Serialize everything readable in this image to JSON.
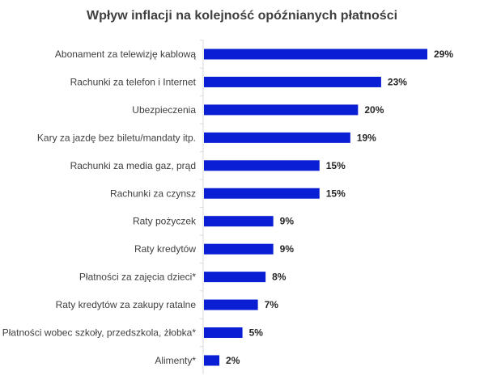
{
  "chart_data": {
    "type": "bar",
    "orientation": "horizontal",
    "title": "Wpływ inflacji na kolejność opóźnianych płatności",
    "categories": [
      "Abonament za telewizję kablową",
      "Rachunki za telefon i Internet",
      "Ubezpieczenia",
      "Kary za jazdę bez biletu/mandaty itp.",
      "Rachunki za media gaz, prąd",
      "Rachunki za czynsz",
      "Raty pożyczek",
      "Raty kredytów",
      "Płatności za zajęcia dzieci*",
      "Raty kredytów za zakupy ratalne",
      "Płatności wobec szkoły, przedszkola, żłobka*",
      "Alimenty*"
    ],
    "values": [
      29,
      23,
      20,
      19,
      15,
      15,
      9,
      9,
      8,
      7,
      5,
      2
    ],
    "value_labels": [
      "29%",
      "23%",
      "20%",
      "19%",
      "15%",
      "15%",
      "9%",
      "9%",
      "8%",
      "7%",
      "5%",
      "2%"
    ],
    "unit": "%",
    "xlim": [
      0,
      30
    ],
    "grid": false,
    "legend": "none",
    "bar_color": "#0a1fd4"
  }
}
